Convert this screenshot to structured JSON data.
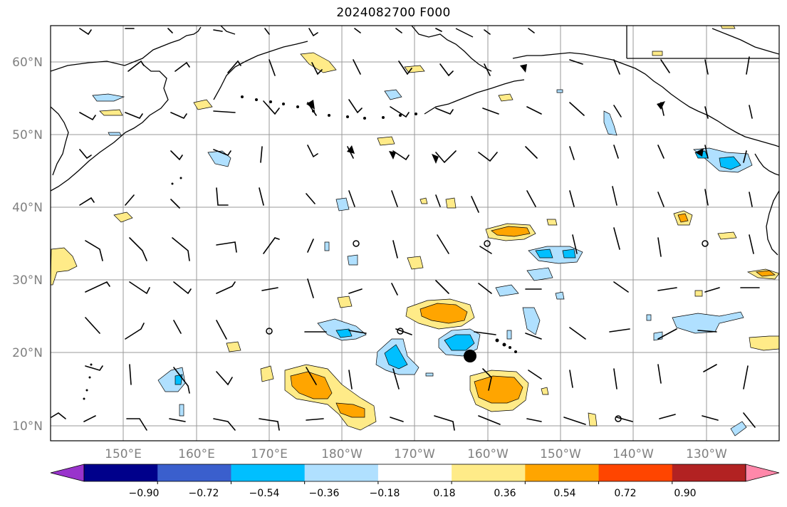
{
  "title": "2024082700 F000",
  "lat_labels": [
    "60°N",
    "50°N",
    "40°N",
    "30°N",
    "20°N",
    "10°N"
  ],
  "lon_labels": [
    "150°E",
    "160°E",
    "170°E",
    "180°W",
    "170°W",
    "160°W",
    "150°W",
    "140°W",
    "130°W"
  ],
  "colorbar": {
    "colors": [
      "#9933cc",
      "#00008b",
      "#3a5fcd",
      "#00bfff",
      "#b0e0ff",
      "#ffffff",
      "#ffeb88",
      "#ffa500",
      "#ff4500",
      "#b22222",
      "#ff88aa"
    ],
    "ticks": [
      "−0.90",
      "−0.72",
      "−0.54",
      "−0.36",
      "−0.18",
      "0.18",
      "0.36",
      "0.54",
      "0.72",
      "0.90"
    ]
  },
  "marker": {
    "label": "",
    "lon": -162.5,
    "lat": 19.5
  }
}
